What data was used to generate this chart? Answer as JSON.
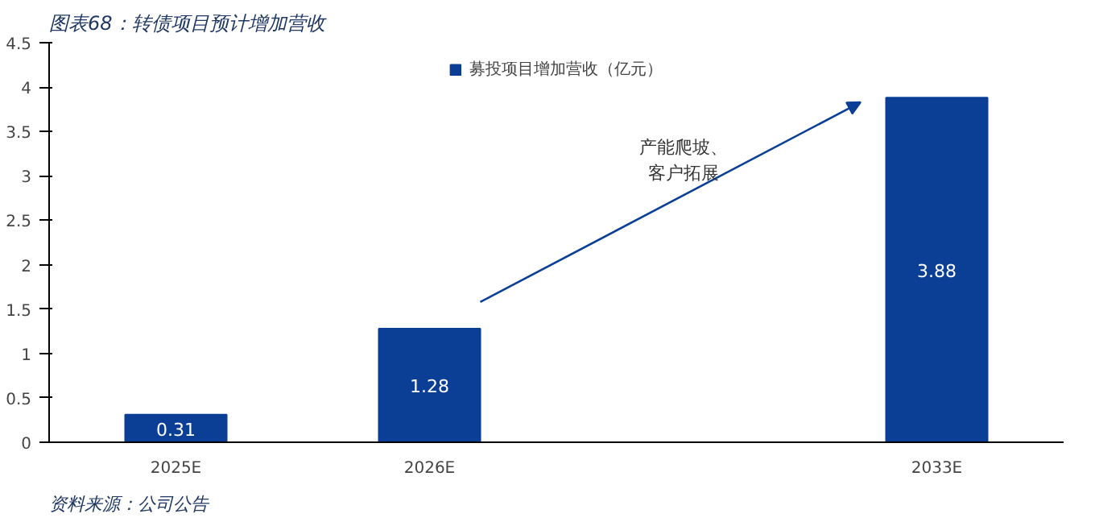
{
  "chart_data": {
    "type": "bar",
    "title": "图表68：转债项目预计增加营收",
    "categories": [
      "2025E",
      "2026E",
      null,
      "2033E"
    ],
    "series": [
      {
        "name": "募投项目增加营收（亿元）",
        "color": "#0b3f96",
        "values": [
          0.31,
          1.28,
          null,
          3.88
        ]
      }
    ],
    "ylim": [
      0,
      4.5
    ],
    "yticks": [
      0,
      0.5,
      1,
      1.5,
      2,
      2.5,
      3,
      3.5,
      4,
      4.5
    ],
    "data_labels": true,
    "grid": false,
    "legend": "top",
    "annotations": [
      "产能爬坡、",
      "客户拓展",
      "资料来源：公司公告"
    ]
  }
}
